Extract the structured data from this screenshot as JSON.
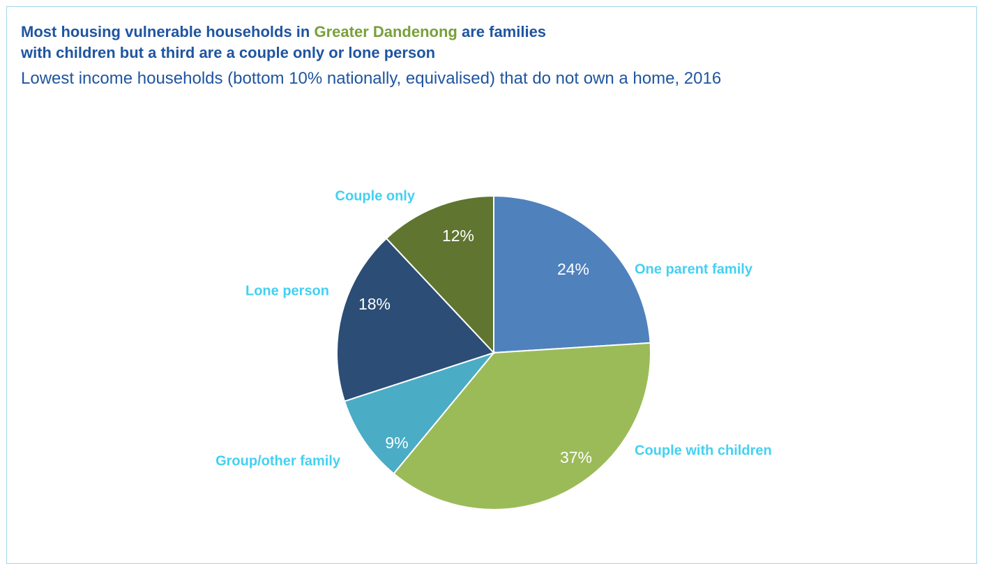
{
  "chart_data": {
    "type": "pie",
    "title": [
      "Most housing vulnerable households in ",
      "Greater Dandenong",
      " are families with children but a third are a couple only or lone person"
    ],
    "title_colors": [
      "#1f55a0",
      "#77a03a",
      "#1f55a0"
    ],
    "subtitle": "Lowest income households (bottom 10% nationally, equivalised) that do not own a home, 2016",
    "categories": [
      "One parent family",
      "Couple with children",
      "Group/other family",
      "Lone person",
      "Couple only"
    ],
    "values": [
      24,
      37,
      9,
      18,
      12
    ],
    "value_labels": [
      "24%",
      "37%",
      "9%",
      "18%",
      "12%"
    ],
    "colors": [
      "#4f81bd",
      "#9bbb59",
      "#4bacc6",
      "#2c4d75",
      "#5f7530"
    ],
    "label_color": "#44d0f2"
  }
}
